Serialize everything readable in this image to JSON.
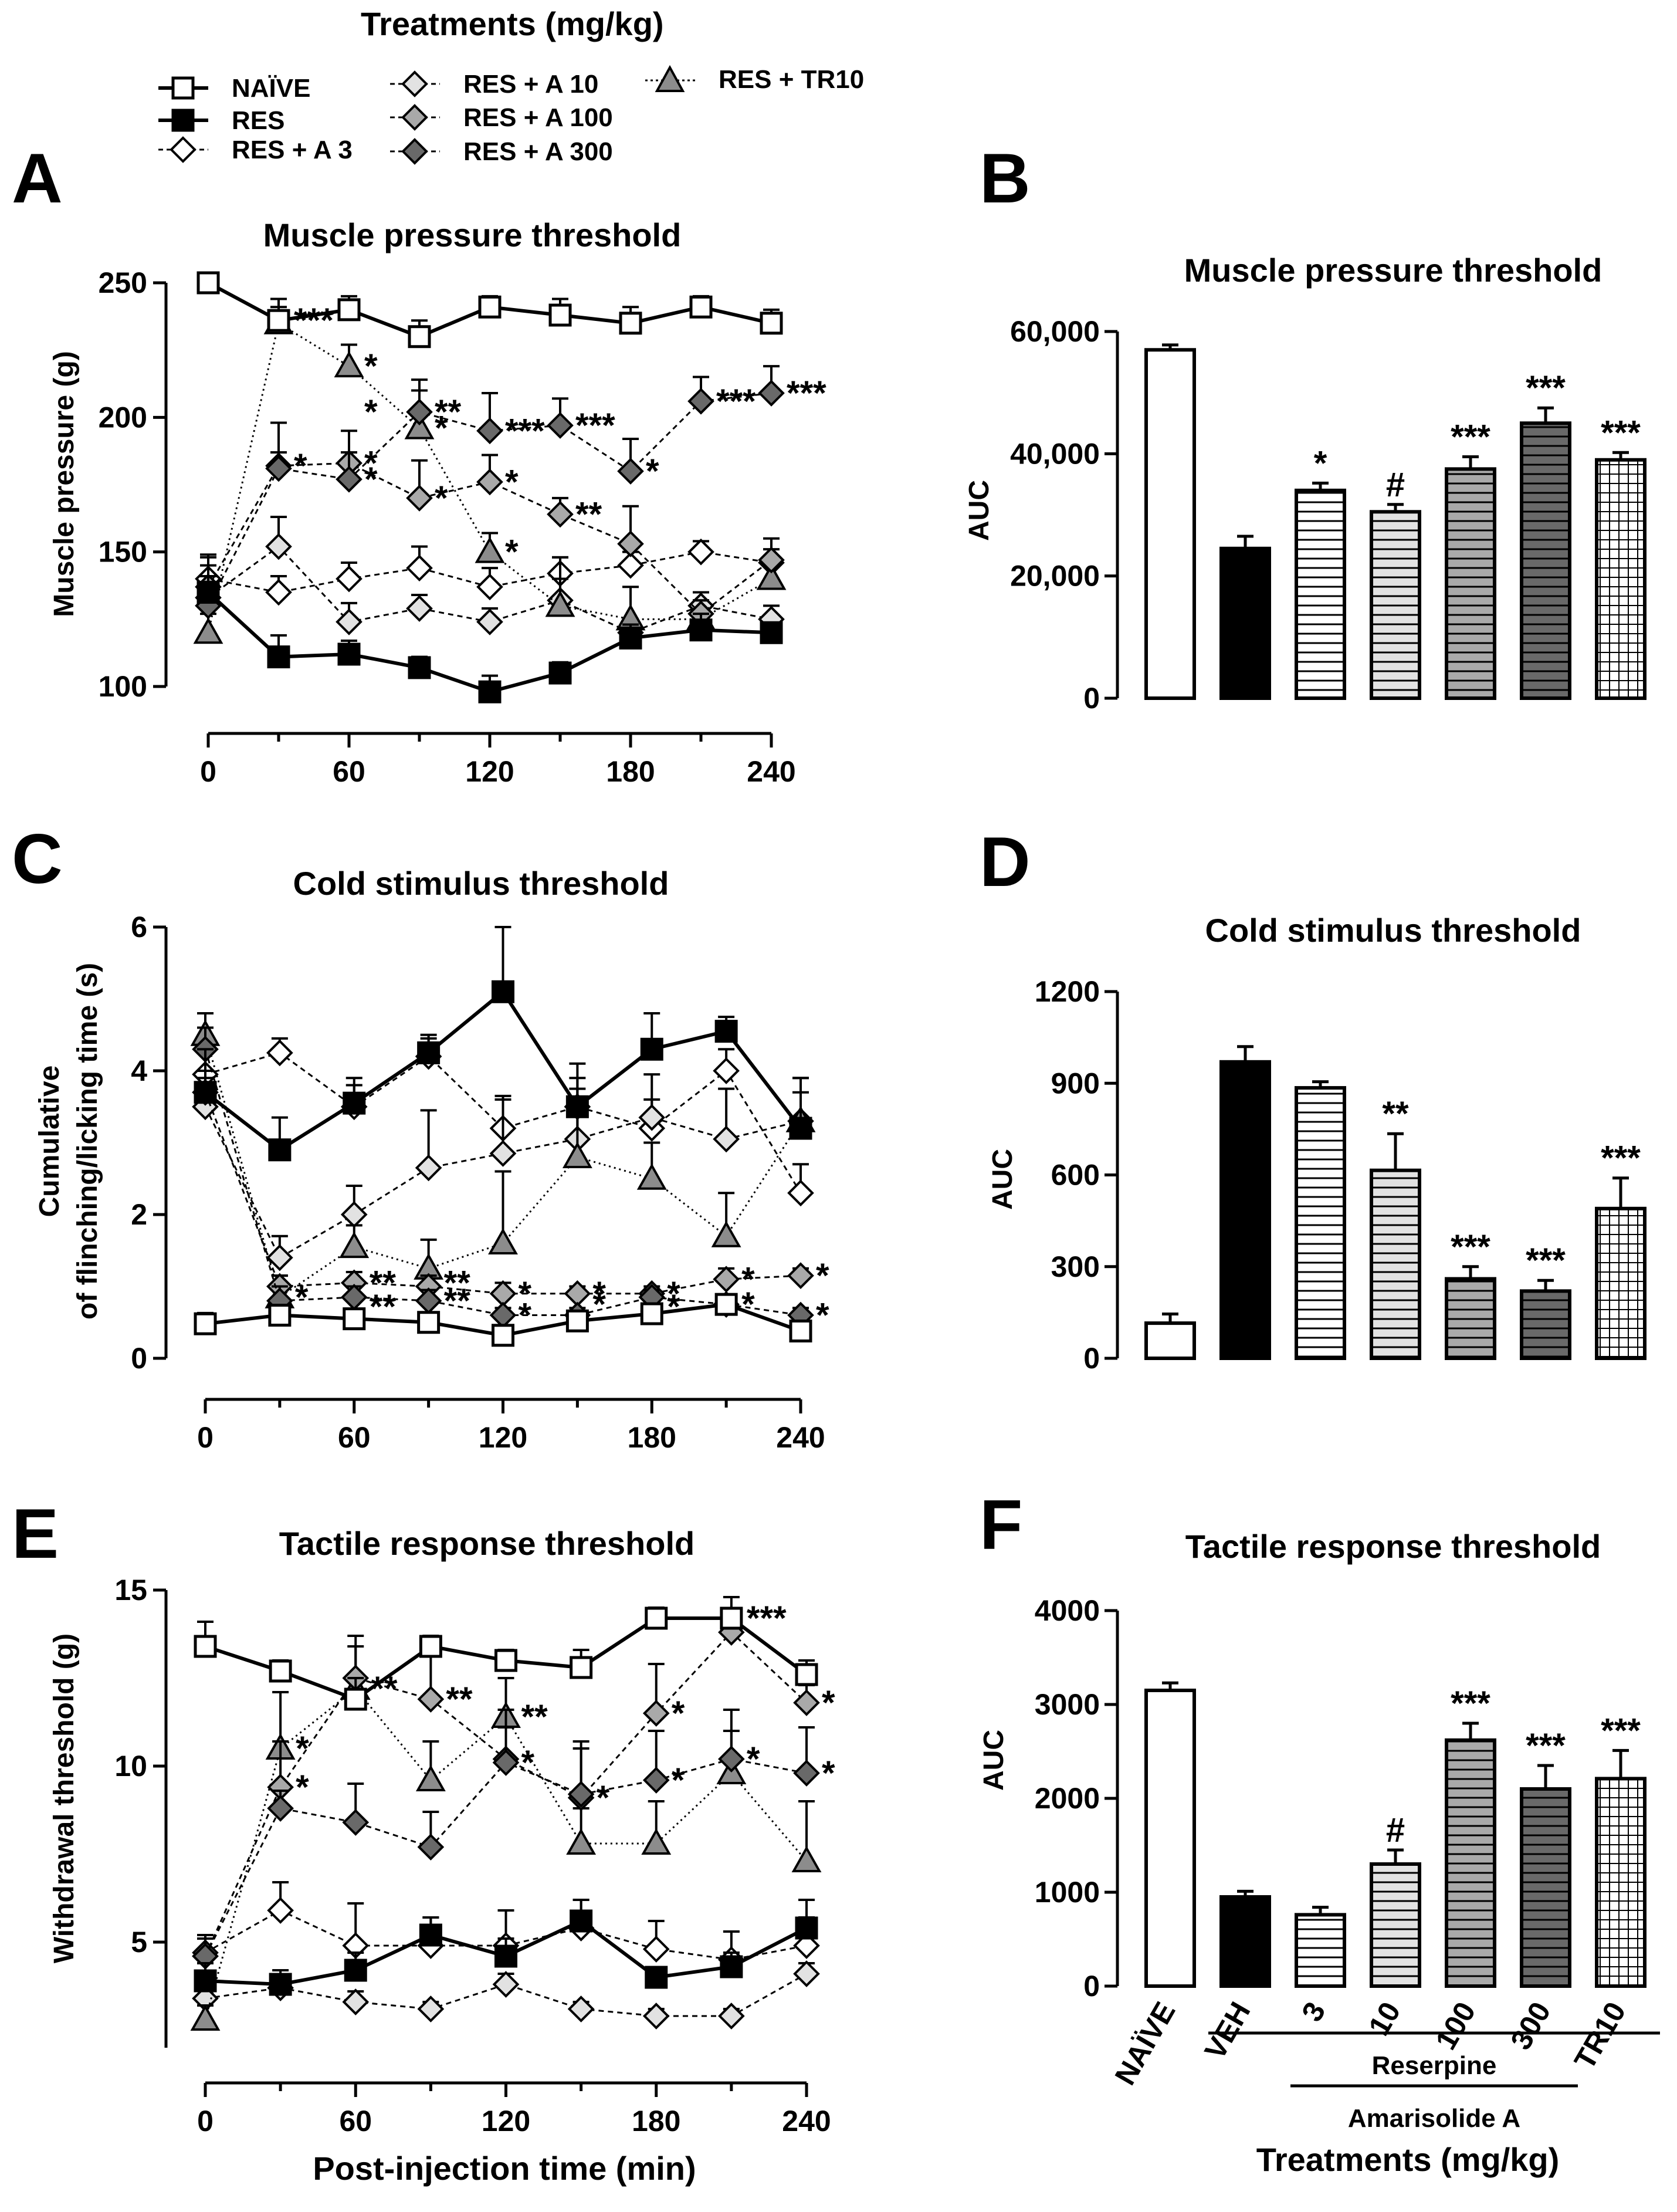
{
  "legend": {
    "title": "Treatments (mg/kg)",
    "entries": [
      {
        "key": "naive",
        "label": "NAÏVE"
      },
      {
        "key": "res",
        "label": "RES"
      },
      {
        "key": "a3",
        "label": "RES + A 3"
      },
      {
        "key": "a10",
        "label": "RES + A 10"
      },
      {
        "key": "a100",
        "label": "RES + A 100"
      },
      {
        "key": "a300",
        "label": "RES + A 300"
      },
      {
        "key": "tr10",
        "label": "RES + TR10"
      }
    ]
  },
  "panel_labels": {
    "A": "A",
    "B": "B",
    "C": "C",
    "D": "D",
    "E": "E",
    "F": "F"
  },
  "bar_groups": {
    "categories": [
      "NAÏVE",
      "VEH",
      "3",
      "10",
      "100",
      "300",
      "TR10"
    ],
    "reserpine_label": "Reserpine",
    "amarisolide_label": "Amarisolide A",
    "treatments_label": "Treatments (mg/kg)"
  },
  "colors": {
    "naive": "#ffffff",
    "res": "#000000",
    "a3": "#ffffff",
    "a10": "#e2e2e2",
    "a100": "#a9a9a9",
    "a300": "#696969",
    "tr10": "#8c8c8c",
    "stroke": "#000000"
  },
  "chart_data": [
    {
      "id": "A",
      "type": "line",
      "title": "Muscle pressure threshold",
      "xlabel": "",
      "ylabel": "Muscle pressure (g)",
      "xlim": [
        0,
        240
      ],
      "ylim": [
        100,
        250
      ],
      "xticks": [
        "0",
        "60",
        "120",
        "180",
        "240"
      ],
      "yticks": [
        "100",
        "150",
        "200",
        "250"
      ],
      "x": [
        0,
        30,
        60,
        90,
        120,
        150,
        180,
        210,
        240
      ],
      "series": [
        {
          "key": "naive",
          "name": "NAÏVE",
          "values": [
            250,
            236,
            240,
            230,
            241,
            238,
            235,
            241,
            235
          ],
          "errors": [
            0,
            8,
            5,
            6,
            4,
            6,
            6,
            4,
            5
          ]
        },
        {
          "key": "res",
          "name": "RES",
          "values": [
            135,
            111,
            112,
            107,
            98,
            105,
            118,
            121,
            120
          ],
          "errors": [
            14,
            8,
            5,
            4,
            6,
            4,
            5,
            6,
            3
          ]
        },
        {
          "key": "a3",
          "name": "RES + A 3",
          "values": [
            140,
            135,
            140,
            144,
            137,
            142,
            145,
            150,
            146
          ],
          "errors": [
            8,
            6,
            6,
            8,
            7,
            6,
            5,
            4,
            5
          ]
        },
        {
          "key": "a10",
          "name": "RES + A 10",
          "values": [
            133,
            152,
            124,
            129,
            124,
            132,
            120,
            130,
            125
          ],
          "errors": [
            8,
            11,
            7,
            5,
            5,
            8,
            5,
            5,
            5
          ]
        },
        {
          "key": "a100",
          "name": "RES + A 100",
          "values": [
            137,
            182,
            183,
            170,
            176,
            164,
            153,
            127,
            147
          ],
          "errors": [
            8,
            16,
            12,
            14,
            10,
            6,
            14,
            5,
            8
          ]
        },
        {
          "key": "a300",
          "name": "RES + A 300",
          "values": [
            130,
            181,
            177,
            202,
            195,
            197,
            180,
            206,
            209
          ],
          "errors": [
            7,
            6,
            10,
            12,
            14,
            10,
            12,
            9,
            10
          ]
        },
        {
          "key": "tr10",
          "name": "RES + TR10",
          "values": [
            120,
            235,
            219,
            196,
            150,
            130,
            125,
            125,
            140
          ],
          "errors": [
            7,
            6,
            8,
            14,
            7,
            18,
            12,
            7,
            7
          ]
        }
      ],
      "annotations": [
        {
          "x": 30,
          "y": 236,
          "text": "***"
        },
        {
          "x": 60,
          "y": 219,
          "text": "*"
        },
        {
          "x": 60,
          "y": 202,
          "text": "*"
        },
        {
          "x": 30,
          "y": 182,
          "text": "*"
        },
        {
          "x": 60,
          "y": 183,
          "text": "*"
        },
        {
          "x": 60,
          "y": 177,
          "text": "*"
        },
        {
          "x": 90,
          "y": 202,
          "text": "**"
        },
        {
          "x": 90,
          "y": 196,
          "text": "*"
        },
        {
          "x": 90,
          "y": 170,
          "text": "*"
        },
        {
          "x": 120,
          "y": 195,
          "text": "***"
        },
        {
          "x": 150,
          "y": 197,
          "text": "***"
        },
        {
          "x": 120,
          "y": 176,
          "text": "*"
        },
        {
          "x": 150,
          "y": 164,
          "text": "**"
        },
        {
          "x": 180,
          "y": 180,
          "text": "*"
        },
        {
          "x": 120,
          "y": 150,
          "text": "*"
        },
        {
          "x": 210,
          "y": 206,
          "text": "***"
        },
        {
          "x": 240,
          "y": 209,
          "text": "***"
        }
      ]
    },
    {
      "id": "B",
      "type": "bar",
      "title": "Muscle pressure threshold",
      "ylabel": "AUC",
      "ylim": [
        0,
        60000
      ],
      "yticks": [
        "0",
        "20,000",
        "40,000",
        "60,000"
      ],
      "categories": [
        "NAÏVE",
        "VEH",
        "3",
        "10",
        "100",
        "300",
        "TR10"
      ],
      "values": [
        57000,
        24500,
        34000,
        30500,
        37500,
        45000,
        39000
      ],
      "errors": [
        800,
        2000,
        1200,
        1200,
        2000,
        2500,
        1200
      ],
      "significance": [
        "",
        "",
        "*",
        "#",
        "***",
        "***",
        "***"
      ]
    },
    {
      "id": "C",
      "type": "line",
      "title": "Cold stimulus threshold",
      "xlabel": "",
      "ylabel_line1": "Cumulative",
      "ylabel_line2": "of flinching/licking time (s)",
      "xlim": [
        0,
        240
      ],
      "ylim": [
        0,
        6
      ],
      "xticks": [
        "0",
        "60",
        "120",
        "180",
        "240"
      ],
      "yticks": [
        "0",
        "2",
        "4",
        "6"
      ],
      "x": [
        0,
        30,
        60,
        90,
        120,
        150,
        180,
        210,
        240
      ],
      "series": [
        {
          "key": "naive",
          "name": "NAÏVE",
          "values": [
            0.48,
            0.6,
            0.55,
            0.5,
            0.32,
            0.52,
            0.62,
            0.75,
            0.38
          ],
          "errors": [
            0.15,
            0.12,
            0.1,
            0.1,
            0.1,
            0.1,
            0.1,
            0.1,
            0.1
          ]
        },
        {
          "key": "res",
          "name": "RES",
          "values": [
            3.7,
            2.9,
            3.55,
            4.25,
            5.1,
            3.5,
            4.3,
            4.55,
            3.2
          ],
          "errors": [
            0.6,
            0.45,
            0.35,
            0.2,
            0.9,
            0.6,
            0.5,
            0.2,
            0.5
          ]
        },
        {
          "key": "a3",
          "name": "RES + A 3",
          "values": [
            3.95,
            4.25,
            3.5,
            4.2,
            3.2,
            3.5,
            3.2,
            4.0,
            2.3
          ],
          "errors": [
            0.4,
            0.2,
            0.3,
            0.3,
            0.4,
            0.4,
            0.4,
            0.3,
            0.4
          ]
        },
        {
          "key": "a10",
          "name": "RES + A 10",
          "values": [
            3.5,
            1.4,
            2.0,
            2.65,
            2.85,
            3.05,
            3.35,
            3.05,
            3.3
          ],
          "errors": [
            0.4,
            0.3,
            0.4,
            0.8,
            0.8,
            0.7,
            0.6,
            0.7,
            0.6
          ]
        },
        {
          "key": "a100",
          "name": "RES + A 100",
          "values": [
            3.7,
            1.0,
            1.05,
            1.0,
            0.9,
            0.9,
            0.9,
            1.1,
            1.15
          ],
          "errors": [
            0.3,
            0.15,
            0.15,
            0.15,
            0.15,
            0.1,
            0.1,
            0.15,
            0.1
          ]
        },
        {
          "key": "a300",
          "name": "RES + A 300",
          "values": [
            4.3,
            0.8,
            0.85,
            0.8,
            0.6,
            0.6,
            0.85,
            0.75,
            0.6
          ],
          "errors": [
            0.3,
            0.2,
            0.15,
            0.15,
            0.1,
            0.1,
            0.1,
            0.1,
            0.1
          ]
        },
        {
          "key": "tr10",
          "name": "RES + TR10",
          "values": [
            4.5,
            0.85,
            1.55,
            1.25,
            1.6,
            2.8,
            2.5,
            1.7,
            3.3
          ],
          "errors": [
            0.3,
            0.3,
            0.3,
            0.4,
            1.0,
            0.8,
            0.5,
            0.6,
            0.6
          ]
        }
      ],
      "annotations": [
        {
          "x": 30,
          "y": 0.85,
          "text": "*"
        },
        {
          "x": 60,
          "y": 1.05,
          "text": "**"
        },
        {
          "x": 60,
          "y": 0.72,
          "text": "**"
        },
        {
          "x": 90,
          "y": 1.05,
          "text": "**"
        },
        {
          "x": 90,
          "y": 0.8,
          "text": "**"
        },
        {
          "x": 120,
          "y": 0.9,
          "text": "*"
        },
        {
          "x": 120,
          "y": 0.6,
          "text": "*"
        },
        {
          "x": 150,
          "y": 0.9,
          "text": "*"
        },
        {
          "x": 150,
          "y": 0.75,
          "text": "*"
        },
        {
          "x": 180,
          "y": 0.9,
          "text": "*"
        },
        {
          "x": 180,
          "y": 0.72,
          "text": "*"
        },
        {
          "x": 210,
          "y": 1.1,
          "text": "*"
        },
        {
          "x": 210,
          "y": 0.75,
          "text": "*"
        },
        {
          "x": 240,
          "y": 1.15,
          "text": "*"
        },
        {
          "x": 240,
          "y": 0.6,
          "text": "*"
        }
      ]
    },
    {
      "id": "D",
      "type": "bar",
      "title": "Cold stimulus threshold",
      "ylabel": "AUC",
      "ylim": [
        0,
        1200
      ],
      "yticks": [
        "0",
        "300",
        "600",
        "900",
        "1200"
      ],
      "categories": [
        "NAÏVE",
        "VEH",
        "3",
        "10",
        "100",
        "300",
        "TR10"
      ],
      "values": [
        115,
        970,
        885,
        615,
        260,
        220,
        490
      ],
      "errors": [
        30,
        50,
        20,
        120,
        40,
        35,
        100
      ],
      "significance": [
        "",
        "",
        "",
        "**",
        "***",
        "***",
        "***"
      ]
    },
    {
      "id": "E",
      "type": "line",
      "title": "Tactile response threshold",
      "xlabel": "Post-injection time (min)",
      "ylabel": "Withdrawal threshold (g)",
      "xlim": [
        0,
        240
      ],
      "ylim": [
        2,
        15
      ],
      "xticks": [
        "0",
        "60",
        "120",
        "180",
        "240"
      ],
      "yticks": [
        "5",
        "10",
        "15"
      ],
      "x": [
        0,
        30,
        60,
        90,
        120,
        150,
        180,
        210,
        240
      ],
      "series": [
        {
          "key": "naive",
          "name": "NAÏVE",
          "values": [
            13.4,
            12.7,
            11.9,
            13.4,
            13.0,
            12.8,
            14.2,
            14.2,
            12.6
          ],
          "errors": [
            0.7,
            0.3,
            0.6,
            0.3,
            0.3,
            0.5,
            0.3,
            0.6,
            0.4
          ]
        },
        {
          "key": "res",
          "name": "RES",
          "values": [
            3.9,
            3.8,
            4.2,
            5.2,
            4.6,
            5.6,
            4.0,
            4.3,
            5.4
          ],
          "errors": [
            0.5,
            0.4,
            0.5,
            0.5,
            0.5,
            0.6,
            0.2,
            0.4,
            0.8
          ]
        },
        {
          "key": "a3",
          "name": "RES + A 3",
          "values": [
            4.7,
            5.9,
            4.9,
            4.9,
            4.9,
            5.4,
            4.8,
            4.5,
            4.9
          ],
          "errors": [
            0.5,
            0.8,
            1.2,
            0.8,
            1.0,
            0.8,
            0.8,
            0.8,
            0.8
          ]
        },
        {
          "key": "a10",
          "name": "RES + A 10",
          "values": [
            3.4,
            3.7,
            3.3,
            3.1,
            3.8,
            3.1,
            2.9,
            2.9,
            4.1
          ],
          "errors": [
            0.3,
            0.3,
            0.3,
            0.2,
            0.3,
            0.2,
            0.2,
            0.2,
            0.3
          ]
        },
        {
          "key": "a100",
          "name": "RES + A 100",
          "values": [
            4.6,
            9.4,
            12.5,
            11.9,
            10.2,
            9.1,
            11.5,
            13.8,
            11.8
          ],
          "errors": [
            0.5,
            1.3,
            1.2,
            1.4,
            1.4,
            1.4,
            1.4,
            0.6,
            0.5
          ]
        },
        {
          "key": "a300",
          "name": "RES + A 300",
          "values": [
            4.6,
            8.8,
            8.4,
            7.7,
            10.1,
            9.2,
            9.6,
            10.2,
            9.8
          ],
          "errors": [
            0.5,
            0.5,
            1.1,
            1.0,
            1.0,
            1.5,
            1.4,
            1.4,
            1.3
          ]
        },
        {
          "key": "tr10",
          "name": "RES + TR10",
          "values": [
            2.8,
            10.5,
            12.2,
            9.6,
            11.4,
            7.8,
            7.8,
            9.8,
            7.3
          ],
          "errors": [
            0.4,
            1.6,
            1.2,
            1.1,
            1.1,
            1.0,
            1.2,
            1.2,
            1.7
          ]
        }
      ],
      "annotations": [
        {
          "x": 30,
          "y": 10.5,
          "text": "*"
        },
        {
          "x": 30,
          "y": 9.4,
          "text": "*"
        },
        {
          "x": 60,
          "y": 12.2,
          "text": "**"
        },
        {
          "x": 90,
          "y": 11.9,
          "text": "**"
        },
        {
          "x": 120,
          "y": 11.4,
          "text": "**"
        },
        {
          "x": 120,
          "y": 10.1,
          "text": "*"
        },
        {
          "x": 150,
          "y": 9.1,
          "text": "*"
        },
        {
          "x": 180,
          "y": 11.5,
          "text": "*"
        },
        {
          "x": 180,
          "y": 9.6,
          "text": "*"
        },
        {
          "x": 210,
          "y": 14.2,
          "text": "***"
        },
        {
          "x": 210,
          "y": 10.2,
          "text": "*"
        },
        {
          "x": 240,
          "y": 11.8,
          "text": "*"
        },
        {
          "x": 240,
          "y": 9.8,
          "text": "*"
        }
      ]
    },
    {
      "id": "F",
      "type": "bar",
      "title": "Tactile response threshold",
      "ylabel": "AUC",
      "ylim": [
        0,
        4000
      ],
      "yticks": [
        "0",
        "1000",
        "2000",
        "3000",
        "4000"
      ],
      "categories": [
        "NAÏVE",
        "VEH",
        "3",
        "10",
        "100",
        "300",
        "TR10"
      ],
      "values": [
        3150,
        950,
        760,
        1300,
        2620,
        2100,
        2210
      ],
      "errors": [
        80,
        60,
        80,
        150,
        180,
        250,
        300
      ],
      "significance": [
        "",
        "",
        "",
        "#",
        "***",
        "***",
        "***"
      ]
    }
  ]
}
